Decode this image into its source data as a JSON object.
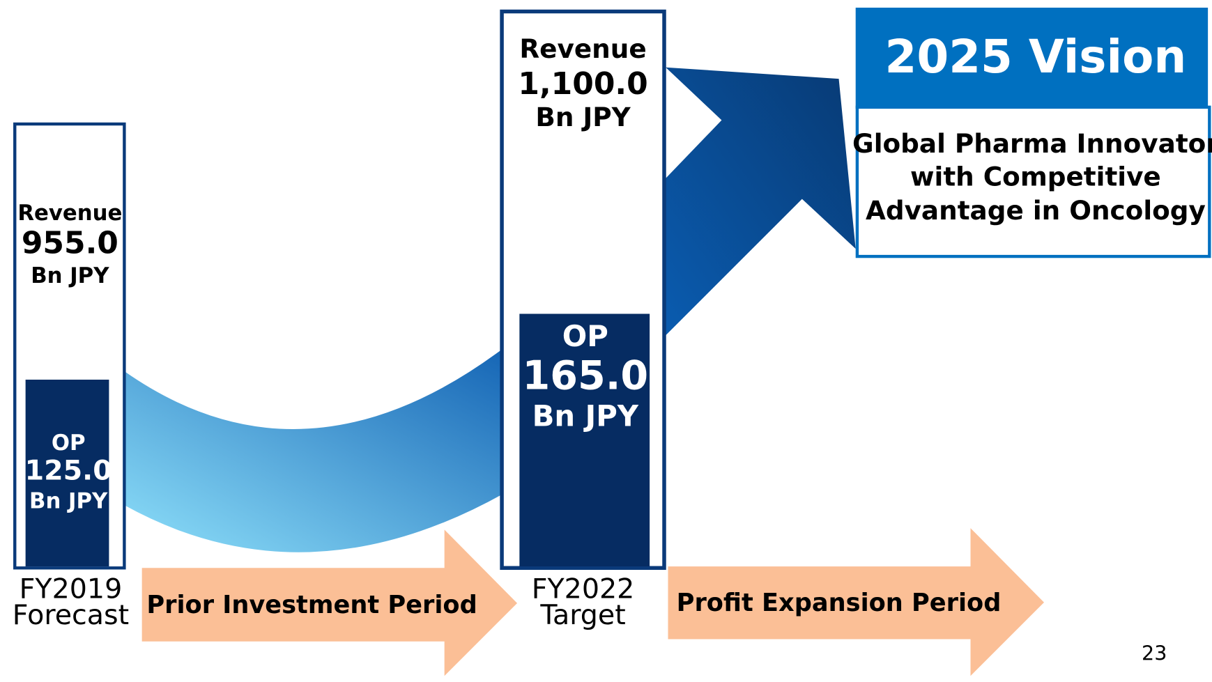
{
  "columns": [
    {
      "revenue_label": "Revenue",
      "revenue": "955.0",
      "revenue_unit": "Bn JPY",
      "op_label": "OP",
      "op": "125.0",
      "op_unit": "Bn JPY",
      "period": "FY2019",
      "period_note": "Forecast"
    },
    {
      "revenue_label": "Revenue",
      "revenue": "1,100.0",
      "revenue_unit": "Bn JPY",
      "op_label": "OP",
      "op": "165.0",
      "op_unit": "Bn JPY",
      "period": "FY2022",
      "period_note": "Target"
    }
  ],
  "phases": [
    "Prior Investment Period",
    "Profit Expansion Period"
  ],
  "vision": {
    "title": "2025 Vision",
    "lines": [
      "Global Pharma Innovator",
      "with Competitive",
      "Advantage in Oncology"
    ]
  },
  "page_number": "23"
}
